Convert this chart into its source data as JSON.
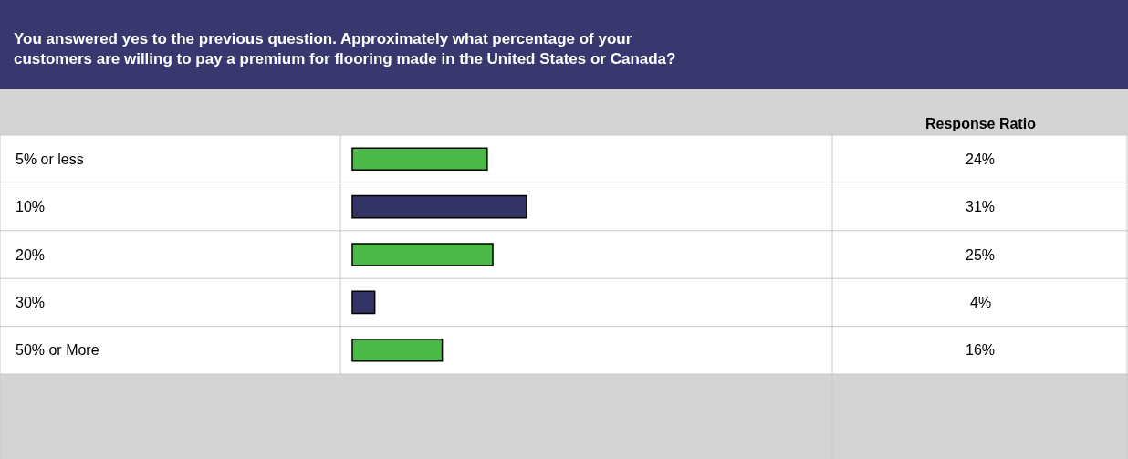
{
  "chart_data": {
    "type": "bar",
    "orientation": "horizontal",
    "title": "You answered yes to the previous question. Approximately what percentage of your customers are willing to pay a premium for flooring made in the United States or Canada?",
    "annotations": [
      "Response Ratio"
    ],
    "categories": [
      "5% or less",
      "10%",
      "20%",
      "30%",
      "50% or More"
    ],
    "values": [
      24,
      31,
      25,
      4,
      16
    ],
    "colors": [
      "#4cb848",
      "#333366",
      "#4cb848",
      "#333366",
      "#4cb848"
    ],
    "value_labels": [
      "24%",
      "31%",
      "25%",
      "4%",
      "16%"
    ],
    "legend": false
  }
}
